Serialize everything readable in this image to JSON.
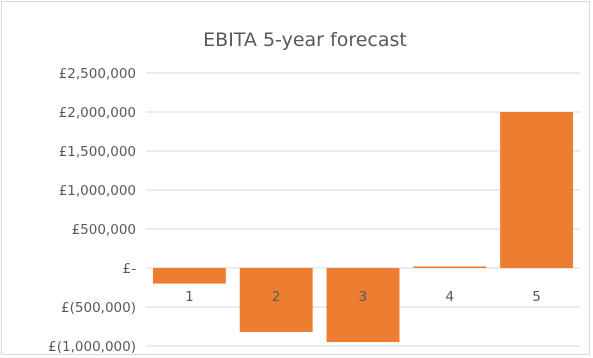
{
  "chart_data": {
    "type": "bar",
    "title": "EBITA 5-year forecast",
    "categories": [
      "1",
      "2",
      "3",
      "4",
      "5"
    ],
    "values": [
      -200000,
      -820000,
      -950000,
      20000,
      2000000
    ],
    "ylim": [
      -1000000,
      2500000
    ],
    "yticks": [
      2500000,
      2000000,
      1500000,
      1000000,
      500000,
      0,
      -500000,
      -1000000
    ],
    "ytick_labels": [
      "£2,500,000",
      "£2,000,000",
      "£1,500,000",
      "£1,000,000",
      "£500,000",
      "£-",
      "£(500,000)",
      "£(1,000,000)"
    ],
    "grid": true,
    "legend": "none",
    "bar_color": "#ED7D31",
    "grid_color": "#d9d9d9"
  }
}
